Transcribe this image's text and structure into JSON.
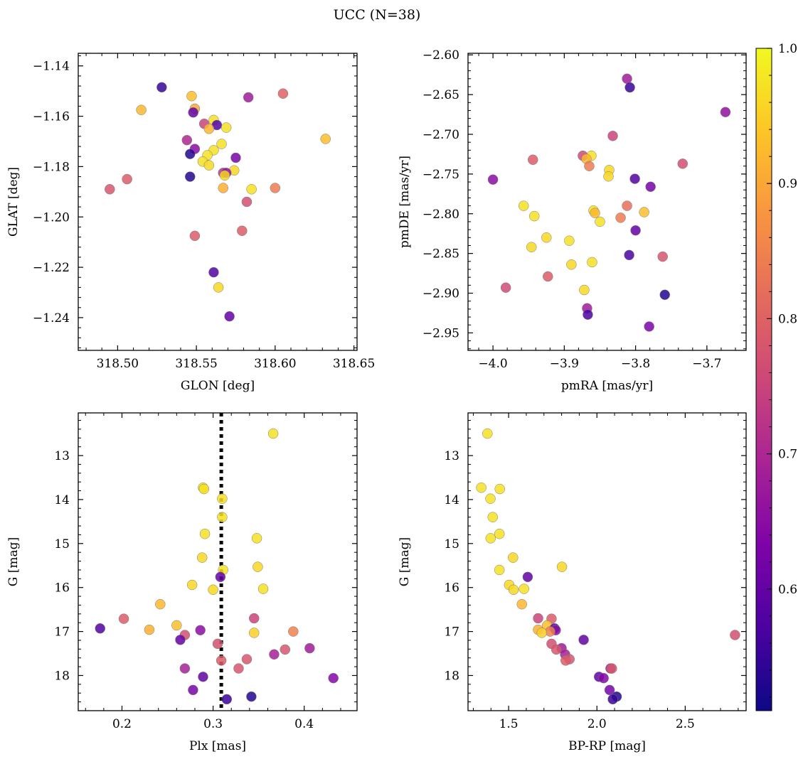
{
  "figure": {
    "title": "UCC (N=38)"
  },
  "colorbar": {
    "vmin": 0.51,
    "vmax": 1.0,
    "ticks": [
      1.0,
      0.9,
      0.8,
      0.7,
      0.6
    ],
    "tick_labels": [
      "1.0",
      "0.9",
      "0.8",
      "0.7",
      "0.6"
    ],
    "colormap": "plasma"
  },
  "chart_data": [
    {
      "type": "scatter",
      "id": "glon-glat",
      "xlabel": "GLON [deg]",
      "ylabel": "GLAT [deg]",
      "xlim": [
        318.475,
        318.652
      ],
      "ylim": [
        -1.253,
        -1.135
      ],
      "xticks": [
        318.5,
        318.55,
        318.6,
        318.65
      ],
      "xtick_labels": [
        "318.50",
        "318.55",
        "318.60",
        "318.65"
      ],
      "yticks": [
        -1.14,
        -1.16,
        -1.18,
        -1.2,
        -1.22,
        -1.24
      ],
      "ytick_labels": [
        "−1.14",
        "−1.16",
        "−1.18",
        "−1.20",
        "−1.22",
        "−1.24"
      ],
      "y_inverted": false,
      "points": [
        {
          "x": 318.528,
          "y": -1.1485,
          "c": 0.55
        },
        {
          "x": 318.547,
          "y": -1.152,
          "c": 0.93
        },
        {
          "x": 318.549,
          "y": -1.157,
          "c": 0.9
        },
        {
          "x": 318.548,
          "y": -1.1585,
          "c": 0.6
        },
        {
          "x": 318.515,
          "y": -1.1575,
          "c": 0.92
        },
        {
          "x": 318.583,
          "y": -1.1525,
          "c": 0.68
        },
        {
          "x": 318.605,
          "y": -1.151,
          "c": 0.8
        },
        {
          "x": 318.555,
          "y": -1.163,
          "c": 0.75
        },
        {
          "x": 318.561,
          "y": -1.1615,
          "c": 0.97
        },
        {
          "x": 318.563,
          "y": -1.1635,
          "c": 0.58
        },
        {
          "x": 318.558,
          "y": -1.165,
          "c": 0.92
        },
        {
          "x": 318.569,
          "y": -1.1645,
          "c": 0.97
        },
        {
          "x": 318.544,
          "y": -1.1695,
          "c": 0.7
        },
        {
          "x": 318.566,
          "y": -1.171,
          "c": 0.97
        },
        {
          "x": 318.632,
          "y": -1.169,
          "c": 0.93
        },
        {
          "x": 318.549,
          "y": -1.173,
          "c": 0.65
        },
        {
          "x": 318.561,
          "y": -1.1735,
          "c": 0.97
        },
        {
          "x": 318.546,
          "y": -1.175,
          "c": 0.53
        },
        {
          "x": 318.557,
          "y": -1.1755,
          "c": 0.97
        },
        {
          "x": 318.575,
          "y": -1.1765,
          "c": 0.62
        },
        {
          "x": 318.554,
          "y": -1.178,
          "c": 0.97
        },
        {
          "x": 318.558,
          "y": -1.1795,
          "c": 0.96
        },
        {
          "x": 318.574,
          "y": -1.1815,
          "c": 0.96
        },
        {
          "x": 318.567,
          "y": -1.1825,
          "c": 0.72
        },
        {
          "x": 318.569,
          "y": -1.1825,
          "c": 0.66
        },
        {
          "x": 318.568,
          "y": -1.1835,
          "c": 0.96
        },
        {
          "x": 318.546,
          "y": -1.184,
          "c": 0.53
        },
        {
          "x": 318.506,
          "y": -1.185,
          "c": 0.79
        },
        {
          "x": 318.495,
          "y": -1.189,
          "c": 0.78
        },
        {
          "x": 318.567,
          "y": -1.1885,
          "c": 0.91
        },
        {
          "x": 318.585,
          "y": -1.189,
          "c": 0.97
        },
        {
          "x": 318.6,
          "y": -1.1885,
          "c": 0.84
        },
        {
          "x": 318.582,
          "y": -1.194,
          "c": 0.77
        },
        {
          "x": 318.579,
          "y": -1.2055,
          "c": 0.79
        },
        {
          "x": 318.549,
          "y": -1.2075,
          "c": 0.79
        },
        {
          "x": 318.561,
          "y": -1.222,
          "c": 0.58
        },
        {
          "x": 318.564,
          "y": -1.228,
          "c": 0.96
        },
        {
          "x": 318.571,
          "y": -1.2395,
          "c": 0.6
        }
      ]
    },
    {
      "type": "scatter",
      "id": "pmra-pmde",
      "xlabel": "pmRA [mas/yr]",
      "ylabel": "pmDE [mas/yr]",
      "xlim": [
        -4.035,
        -3.645
      ],
      "ylim": [
        -2.972,
        -2.598
      ],
      "xticks": [
        -4.0,
        -3.9,
        -3.8,
        -3.7
      ],
      "xtick_labels": [
        "−4.0",
        "−3.9",
        "−3.8",
        "−3.7"
      ],
      "yticks": [
        -2.6,
        -2.65,
        -2.7,
        -2.75,
        -2.8,
        -2.85,
        -2.9,
        -2.95
      ],
      "ytick_labels": [
        "−2.60",
        "−2.65",
        "−2.70",
        "−2.75",
        "−2.80",
        "−2.85",
        "−2.90",
        "−2.95"
      ],
      "y_inverted": false,
      "points": [
        {
          "x": -3.812,
          "y": -2.63,
          "c": 0.68
        },
        {
          "x": -3.808,
          "y": -2.641,
          "c": 0.55
        },
        {
          "x": -3.674,
          "y": -2.672,
          "c": 0.66
        },
        {
          "x": -3.832,
          "y": -2.702,
          "c": 0.75
        },
        {
          "x": -3.874,
          "y": -2.727,
          "c": 0.76
        },
        {
          "x": -3.862,
          "y": -2.727,
          "c": 0.97
        },
        {
          "x": -3.869,
          "y": -2.731,
          "c": 0.92
        },
        {
          "x": -3.944,
          "y": -2.732,
          "c": 0.79
        },
        {
          "x": -3.734,
          "y": -2.737,
          "c": 0.77
        },
        {
          "x": -3.865,
          "y": -2.74,
          "c": 0.84
        },
        {
          "x": -3.837,
          "y": -2.745,
          "c": 0.96
        },
        {
          "x": -3.838,
          "y": -2.753,
          "c": 0.96
        },
        {
          "x": -4.0,
          "y": -2.757,
          "c": 0.65
        },
        {
          "x": -3.801,
          "y": -2.756,
          "c": 0.58
        },
        {
          "x": -3.779,
          "y": -2.766,
          "c": 0.62
        },
        {
          "x": -3.957,
          "y": -2.79,
          "c": 0.97
        },
        {
          "x": -3.812,
          "y": -2.79,
          "c": 0.82
        },
        {
          "x": -3.859,
          "y": -2.796,
          "c": 0.97
        },
        {
          "x": -3.857,
          "y": -2.799,
          "c": 0.92
        },
        {
          "x": -3.788,
          "y": -2.798,
          "c": 0.93
        },
        {
          "x": -3.942,
          "y": -2.803,
          "c": 0.97
        },
        {
          "x": -3.821,
          "y": -2.805,
          "c": 0.84
        },
        {
          "x": -3.85,
          "y": -2.81,
          "c": 0.97
        },
        {
          "x": -3.8,
          "y": -2.821,
          "c": 0.6
        },
        {
          "x": -3.925,
          "y": -2.83,
          "c": 0.96
        },
        {
          "x": -3.893,
          "y": -2.834,
          "c": 0.97
        },
        {
          "x": -3.946,
          "y": -2.842,
          "c": 0.96
        },
        {
          "x": -3.809,
          "y": -2.852,
          "c": 0.57
        },
        {
          "x": -3.762,
          "y": -2.854,
          "c": 0.78
        },
        {
          "x": -3.861,
          "y": -2.861,
          "c": 0.97
        },
        {
          "x": -3.89,
          "y": -2.864,
          "c": 0.96
        },
        {
          "x": -3.923,
          "y": -2.879,
          "c": 0.79
        },
        {
          "x": -3.982,
          "y": -2.893,
          "c": 0.76
        },
        {
          "x": -3.872,
          "y": -2.896,
          "c": 0.96
        },
        {
          "x": -3.759,
          "y": -2.902,
          "c": 0.53
        },
        {
          "x": -3.868,
          "y": -2.919,
          "c": 0.68
        },
        {
          "x": -3.867,
          "y": -2.927,
          "c": 0.57
        },
        {
          "x": -3.781,
          "y": -2.942,
          "c": 0.63
        }
      ]
    },
    {
      "type": "scatter",
      "id": "plx-g",
      "xlabel": "Plx [mas]",
      "ylabel": "G [mag]",
      "xlim": [
        0.152,
        0.458
      ],
      "ylim": [
        18.8,
        12.03
      ],
      "xticks": [
        0.2,
        0.3,
        0.4
      ],
      "xtick_labels": [
        "0.2",
        "0.3",
        "0.4"
      ],
      "yticks": [
        13,
        14,
        15,
        16,
        17,
        18
      ],
      "ytick_labels": [
        "13",
        "14",
        "15",
        "16",
        "17",
        "18"
      ],
      "y_inverted": true,
      "vline": {
        "x": 0.309,
        "style": "dotted"
      },
      "points": [
        {
          "x": 0.366,
          "y": 12.5,
          "c": 0.97
        },
        {
          "x": 0.289,
          "y": 13.73,
          "c": 0.97
        },
        {
          "x": 0.29,
          "y": 13.76,
          "c": 0.97
        },
        {
          "x": 0.31,
          "y": 13.98,
          "c": 0.97
        },
        {
          "x": 0.31,
          "y": 14.4,
          "c": 0.97
        },
        {
          "x": 0.291,
          "y": 14.78,
          "c": 0.97
        },
        {
          "x": 0.348,
          "y": 14.88,
          "c": 0.97
        },
        {
          "x": 0.288,
          "y": 15.32,
          "c": 0.96
        },
        {
          "x": 0.349,
          "y": 15.53,
          "c": 0.96
        },
        {
          "x": 0.311,
          "y": 15.6,
          "c": 0.97
        },
        {
          "x": 0.308,
          "y": 15.76,
          "c": 0.6
        },
        {
          "x": 0.277,
          "y": 15.94,
          "c": 0.96
        },
        {
          "x": 0.355,
          "y": 16.03,
          "c": 0.97
        },
        {
          "x": 0.3,
          "y": 16.05,
          "c": 0.96
        },
        {
          "x": 0.242,
          "y": 16.38,
          "c": 0.92
        },
        {
          "x": 0.345,
          "y": 16.7,
          "c": 0.75
        },
        {
          "x": 0.202,
          "y": 16.71,
          "c": 0.79
        },
        {
          "x": 0.26,
          "y": 16.86,
          "c": 0.93
        },
        {
          "x": 0.176,
          "y": 16.93,
          "c": 0.58
        },
        {
          "x": 0.23,
          "y": 16.96,
          "c": 0.91
        },
        {
          "x": 0.286,
          "y": 16.97,
          "c": 0.65
        },
        {
          "x": 0.388,
          "y": 17.0,
          "c": 0.85
        },
        {
          "x": 0.345,
          "y": 17.03,
          "c": 0.95
        },
        {
          "x": 0.269,
          "y": 17.08,
          "c": 0.77
        },
        {
          "x": 0.264,
          "y": 17.19,
          "c": 0.6
        },
        {
          "x": 0.305,
          "y": 17.28,
          "c": 0.77
        },
        {
          "x": 0.406,
          "y": 17.38,
          "c": 0.68
        },
        {
          "x": 0.379,
          "y": 17.41,
          "c": 0.78
        },
        {
          "x": 0.367,
          "y": 17.52,
          "c": 0.69
        },
        {
          "x": 0.337,
          "y": 17.63,
          "c": 0.78
        },
        {
          "x": 0.309,
          "y": 17.66,
          "c": 0.79
        },
        {
          "x": 0.269,
          "y": 17.84,
          "c": 0.69
        },
        {
          "x": 0.328,
          "y": 17.84,
          "c": 0.78
        },
        {
          "x": 0.289,
          "y": 18.03,
          "c": 0.6
        },
        {
          "x": 0.432,
          "y": 18.06,
          "c": 0.64
        },
        {
          "x": 0.278,
          "y": 18.33,
          "c": 0.62
        },
        {
          "x": 0.342,
          "y": 18.48,
          "c": 0.53
        },
        {
          "x": 0.315,
          "y": 18.54,
          "c": 0.55
        }
      ]
    },
    {
      "type": "scatter",
      "id": "bprp-g",
      "xlabel": "BP-RP [mag]",
      "ylabel": "G [mag]",
      "xlim": [
        1.27,
        2.845
      ],
      "ylim": [
        18.8,
        12.03
      ],
      "xticks": [
        1.5,
        2.0,
        2.5
      ],
      "xtick_labels": [
        "1.5",
        "2.0",
        "2.5"
      ],
      "yticks": [
        13,
        14,
        15,
        16,
        17,
        18
      ],
      "ytick_labels": [
        "13",
        "14",
        "15",
        "16",
        "17",
        "18"
      ],
      "y_inverted": true,
      "points": [
        {
          "x": 1.38,
          "y": 12.5,
          "c": 0.97
        },
        {
          "x": 1.345,
          "y": 13.73,
          "c": 0.97
        },
        {
          "x": 1.45,
          "y": 13.76,
          "c": 0.97
        },
        {
          "x": 1.397,
          "y": 13.98,
          "c": 0.97
        },
        {
          "x": 1.41,
          "y": 14.4,
          "c": 0.97
        },
        {
          "x": 1.448,
          "y": 14.78,
          "c": 0.97
        },
        {
          "x": 1.398,
          "y": 14.88,
          "c": 0.97
        },
        {
          "x": 1.525,
          "y": 15.32,
          "c": 0.96
        },
        {
          "x": 1.802,
          "y": 15.53,
          "c": 0.96
        },
        {
          "x": 1.448,
          "y": 15.6,
          "c": 0.97
        },
        {
          "x": 1.608,
          "y": 15.76,
          "c": 0.6
        },
        {
          "x": 1.503,
          "y": 15.94,
          "c": 0.96
        },
        {
          "x": 1.587,
          "y": 16.03,
          "c": 0.97
        },
        {
          "x": 1.528,
          "y": 16.05,
          "c": 0.96
        },
        {
          "x": 1.575,
          "y": 16.38,
          "c": 0.92
        },
        {
          "x": 1.667,
          "y": 16.7,
          "c": 0.75
        },
        {
          "x": 1.743,
          "y": 16.71,
          "c": 0.79
        },
        {
          "x": 1.718,
          "y": 16.86,
          "c": 0.93
        },
        {
          "x": 1.76,
          "y": 16.93,
          "c": 0.58
        },
        {
          "x": 1.667,
          "y": 16.96,
          "c": 0.91
        },
        {
          "x": 1.767,
          "y": 16.97,
          "c": 0.65
        },
        {
          "x": 1.735,
          "y": 17.0,
          "c": 0.85
        },
        {
          "x": 1.688,
          "y": 17.03,
          "c": 0.95
        },
        {
          "x": 2.782,
          "y": 17.08,
          "c": 0.77
        },
        {
          "x": 1.925,
          "y": 17.19,
          "c": 0.6
        },
        {
          "x": 1.743,
          "y": 17.28,
          "c": 0.77
        },
        {
          "x": 1.8,
          "y": 17.38,
          "c": 0.68
        },
        {
          "x": 1.77,
          "y": 17.41,
          "c": 0.78
        },
        {
          "x": 1.82,
          "y": 17.52,
          "c": 0.69
        },
        {
          "x": 1.845,
          "y": 17.63,
          "c": 0.78
        },
        {
          "x": 1.823,
          "y": 17.66,
          "c": 0.79
        },
        {
          "x": 2.077,
          "y": 17.84,
          "c": 0.69
        },
        {
          "x": 2.085,
          "y": 17.84,
          "c": 0.78
        },
        {
          "x": 2.012,
          "y": 18.03,
          "c": 0.6
        },
        {
          "x": 2.038,
          "y": 18.06,
          "c": 0.64
        },
        {
          "x": 2.072,
          "y": 18.33,
          "c": 0.62
        },
        {
          "x": 2.112,
          "y": 18.48,
          "c": 0.53
        },
        {
          "x": 2.09,
          "y": 18.54,
          "c": 0.55
        }
      ]
    }
  ]
}
